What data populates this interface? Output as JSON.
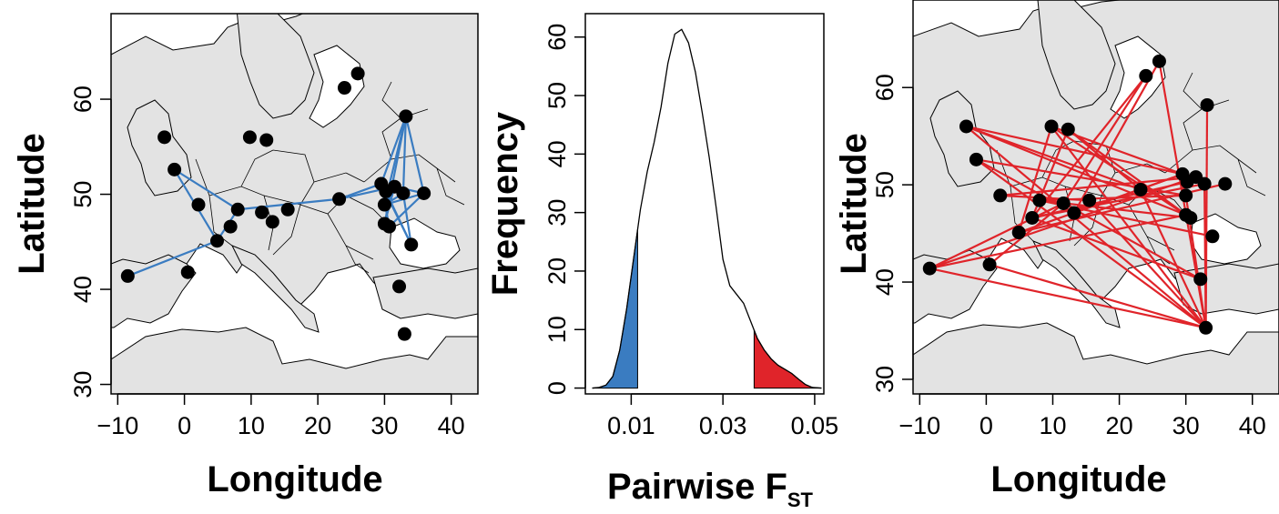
{
  "chart_data": [
    {
      "type": "map",
      "xlabel": "Longitude",
      "ylabel": "Latitude",
      "xlim": [
        -11,
        44
      ],
      "ylim": [
        29,
        69
      ],
      "xticks": [
        -10,
        0,
        10,
        20,
        30,
        40
      ],
      "yticks": [
        30,
        40,
        50,
        60
      ],
      "xtick_labels": [
        "−10",
        "0",
        "10",
        "20",
        "30",
        "40"
      ],
      "ytick_labels": [
        "30",
        "40",
        "50",
        "60"
      ],
      "background": "light-grey land, white sea, country borders",
      "link_color": "#3a7cc1",
      "points": [
        [
          -8.5,
          41.4
        ],
        [
          0.5,
          41.8
        ],
        [
          4.9,
          45.1
        ],
        [
          6.9,
          46.6
        ],
        [
          2.1,
          48.9
        ],
        [
          -1.5,
          52.6
        ],
        [
          -3.0,
          56.0
        ],
        [
          9.8,
          56.0
        ],
        [
          12.3,
          55.7
        ],
        [
          8.0,
          48.4
        ],
        [
          11.6,
          48.1
        ],
        [
          13.2,
          47.1
        ],
        [
          15.5,
          48.4
        ],
        [
          23.2,
          49.5
        ],
        [
          24.0,
          61.2
        ],
        [
          26.0,
          62.7
        ],
        [
          29.5,
          51.1
        ],
        [
          30.2,
          50.3
        ],
        [
          30.0,
          48.9
        ],
        [
          31.5,
          50.8
        ],
        [
          32.8,
          50.1
        ],
        [
          33.2,
          58.2
        ],
        [
          35.9,
          50.1
        ],
        [
          30.0,
          46.9
        ],
        [
          30.7,
          46.6
        ],
        [
          34.0,
          44.7
        ],
        [
          32.2,
          40.3
        ],
        [
          33.0,
          35.3
        ]
      ],
      "links": [
        [
          0,
          2
        ],
        [
          2,
          5
        ],
        [
          2,
          9
        ],
        [
          5,
          9
        ],
        [
          9,
          13
        ],
        [
          13,
          16
        ],
        [
          13,
          19
        ],
        [
          16,
          21
        ],
        [
          21,
          18
        ],
        [
          21,
          23
        ],
        [
          21,
          22
        ],
        [
          21,
          20
        ],
        [
          18,
          22
        ],
        [
          19,
          22
        ],
        [
          16,
          25
        ],
        [
          24,
          22
        ],
        [
          23,
          19
        ],
        [
          17,
          25
        ],
        [
          18,
          20
        ],
        [
          16,
          24
        ],
        [
          20,
          25
        ]
      ]
    },
    {
      "type": "density",
      "xlabel": "Pairwise F",
      "xlabel_subscript": "ST",
      "ylabel": "Frequency",
      "xlim": [
        0.0,
        0.052
      ],
      "ylim": [
        -1,
        64
      ],
      "xticks": [
        0.01,
        0.03,
        0.05
      ],
      "yticks": [
        0,
        10,
        20,
        30,
        40,
        50,
        60
      ],
      "xtick_labels": [
        "0.01",
        "0.03",
        "0.05"
      ],
      "ytick_labels": [
        "0",
        "10",
        "20",
        "30",
        "40",
        "50",
        "60"
      ],
      "curve": {
        "x": [
          0.0015,
          0.003,
          0.0045,
          0.006,
          0.0075,
          0.009,
          0.0105,
          0.012,
          0.0135,
          0.015,
          0.0165,
          0.018,
          0.0195,
          0.021,
          0.0225,
          0.024,
          0.0255,
          0.027,
          0.0285,
          0.03,
          0.0315,
          0.033,
          0.0345,
          0.036,
          0.0375,
          0.039,
          0.0405,
          0.042,
          0.0435,
          0.045,
          0.0465,
          0.048,
          0.0495,
          0.0515
        ],
        "y": [
          0,
          0.1,
          0.5,
          2.0,
          6.5,
          13.5,
          22.0,
          30.5,
          37.0,
          42.0,
          48.0,
          55.5,
          60.5,
          61.3,
          59.0,
          54.0,
          47.0,
          39.5,
          31.0,
          22.0,
          17.5,
          16.0,
          14.5,
          11.5,
          8.5,
          6.5,
          5.0,
          3.9,
          3.2,
          2.5,
          1.5,
          0.6,
          0.1,
          0
        ]
      },
      "shaded_regions": [
        {
          "name": "low",
          "from": 0.0015,
          "to": 0.0114,
          "color": "#3a7cc1"
        },
        {
          "name": "high",
          "from": 0.0368,
          "to": 0.0515,
          "color": "#e0242a"
        }
      ]
    },
    {
      "type": "map",
      "xlabel": "Longitude",
      "ylabel": "Latitude",
      "xlim": [
        -11,
        44
      ],
      "ylim": [
        28.5,
        69
      ],
      "xticks": [
        -10,
        0,
        10,
        20,
        30,
        40
      ],
      "yticks": [
        30,
        40,
        50,
        60
      ],
      "xtick_labels": [
        "−10",
        "0",
        "10",
        "20",
        "30",
        "40"
      ],
      "ytick_labels": [
        "30",
        "40",
        "50",
        "60"
      ],
      "background": "light-grey land, white sea, country borders",
      "link_color": "#e0242a",
      "points": [
        [
          -8.5,
          41.4
        ],
        [
          0.5,
          41.8
        ],
        [
          4.9,
          45.1
        ],
        [
          6.9,
          46.6
        ],
        [
          2.1,
          48.9
        ],
        [
          -1.5,
          52.6
        ],
        [
          -3.0,
          56.0
        ],
        [
          9.8,
          56.0
        ],
        [
          12.3,
          55.7
        ],
        [
          8.0,
          48.4
        ],
        [
          11.6,
          48.1
        ],
        [
          13.2,
          47.1
        ],
        [
          15.5,
          48.4
        ],
        [
          23.2,
          49.5
        ],
        [
          24.0,
          61.2
        ],
        [
          26.0,
          62.7
        ],
        [
          29.5,
          51.1
        ],
        [
          30.2,
          50.3
        ],
        [
          30.0,
          48.9
        ],
        [
          31.5,
          50.8
        ],
        [
          32.8,
          50.1
        ],
        [
          33.2,
          58.2
        ],
        [
          35.9,
          50.1
        ],
        [
          30.0,
          46.9
        ],
        [
          30.7,
          46.6
        ],
        [
          34.0,
          44.7
        ],
        [
          32.2,
          40.3
        ],
        [
          33.0,
          35.3
        ]
      ],
      "links": [
        [
          0,
          27
        ],
        [
          0,
          23
        ],
        [
          0,
          19
        ],
        [
          0,
          10
        ],
        [
          1,
          27
        ],
        [
          1,
          10
        ],
        [
          6,
          27
        ],
        [
          6,
          19
        ],
        [
          6,
          23
        ],
        [
          6,
          13
        ],
        [
          5,
          27
        ],
        [
          5,
          18
        ],
        [
          5,
          11
        ],
        [
          7,
          27
        ],
        [
          7,
          16
        ],
        [
          7,
          2
        ],
        [
          7,
          23
        ],
        [
          8,
          3
        ],
        [
          8,
          13
        ],
        [
          8,
          24
        ],
        [
          4,
          19
        ],
        [
          4,
          12
        ],
        [
          2,
          22
        ],
        [
          3,
          20
        ],
        [
          9,
          18
        ],
        [
          9,
          25
        ],
        [
          10,
          26
        ],
        [
          11,
          16
        ],
        [
          12,
          27
        ],
        [
          13,
          27
        ],
        [
          14,
          10
        ],
        [
          14,
          3
        ],
        [
          15,
          11
        ],
        [
          15,
          27
        ],
        [
          16,
          2
        ],
        [
          17,
          3
        ],
        [
          20,
          27
        ],
        [
          21,
          27
        ],
        [
          26,
          3
        ],
        [
          24,
          9
        ],
        [
          18,
          27
        ]
      ]
    }
  ]
}
